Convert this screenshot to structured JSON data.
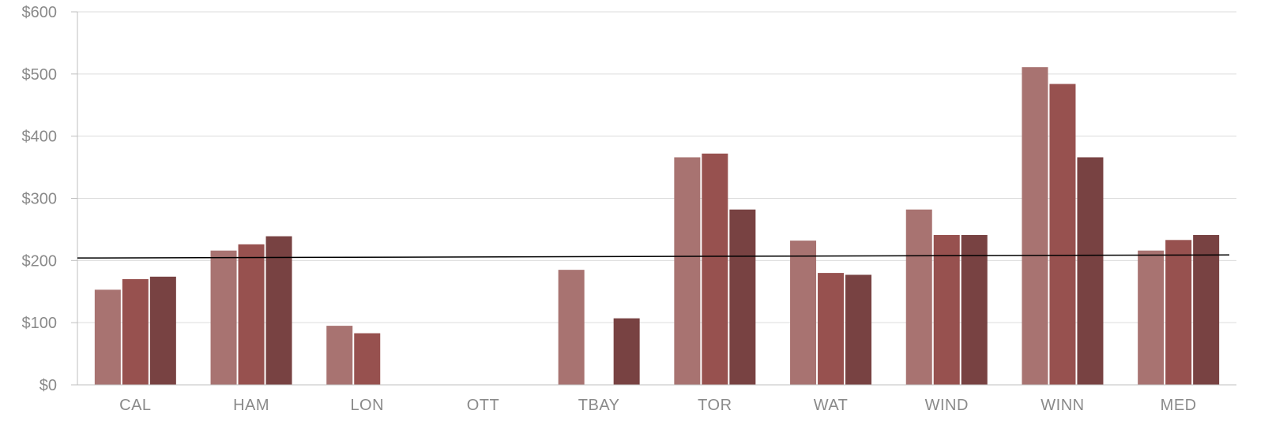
{
  "chart_data": {
    "type": "bar",
    "title": "",
    "xlabel": "",
    "ylabel": "",
    "ylim": [
      0,
      600
    ],
    "y_ticks": [
      {
        "value": 0,
        "label": "$0"
      },
      {
        "value": 100,
        "label": "$100"
      },
      {
        "value": 200,
        "label": "$200"
      },
      {
        "value": 300,
        "label": "$300"
      },
      {
        "value": 400,
        "label": "$400"
      },
      {
        "value": 500,
        "label": "$500"
      },
      {
        "value": 600,
        "label": "$600"
      }
    ],
    "grid": true,
    "legend": "none",
    "categories": [
      "CAL",
      "HAM",
      "LON",
      "OTT",
      "TBAY",
      "TOR",
      "WAT",
      "WIND",
      "WINN",
      "MED"
    ],
    "series": [
      {
        "color": "#a87371",
        "values": [
          153,
          216,
          95,
          null,
          185,
          366,
          232,
          282,
          511,
          216
        ]
      },
      {
        "color": "#97514f",
        "values": [
          170,
          226,
          83,
          null,
          null,
          372,
          180,
          241,
          484,
          233
        ]
      },
      {
        "color": "#784242",
        "values": [
          174,
          239,
          null,
          null,
          107,
          282,
          177,
          241,
          366,
          241
        ]
      }
    ],
    "trendline": {
      "color": "#000000",
      "start": 204,
      "end": 209
    }
  }
}
